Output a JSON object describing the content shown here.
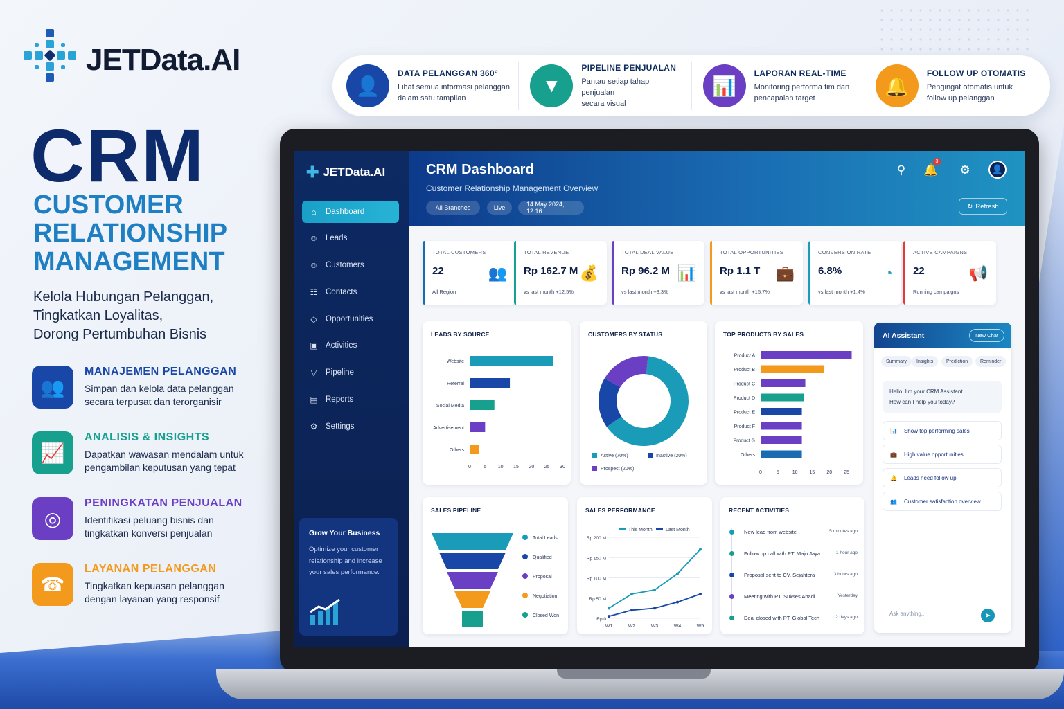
{
  "brand": {
    "name": "JETData.AI"
  },
  "hero": {
    "title": "CRM",
    "subtitle_lines": [
      "CUSTOMER",
      "RELATIONSHIP",
      "MANAGEMENT"
    ],
    "desc_lines": [
      "Kelola Hubungan Pelanggan,",
      "Tingkatkan Loyalitas,",
      "Dorong Pertumbuhan Bisnis"
    ]
  },
  "features": [
    {
      "title": "MANAJEMEN PELANGGAN",
      "desc1": "Simpan dan kelola data pelanggan",
      "desc2": "secara terpusat dan terorganisir",
      "icon": "users-icon",
      "color": "#1847a8"
    },
    {
      "title": "ANALISIS & INSIGHTS",
      "desc1": "Dapatkan wawasan mendalam untuk",
      "desc2": "pengambilan keputusan yang tepat",
      "icon": "chart-up-icon",
      "color": "#17a08d"
    },
    {
      "title": "PENINGKATAN PENJUALAN",
      "desc1": "Identifikasi peluang bisnis dan",
      "desc2": "tingkatkan konversi penjualan",
      "icon": "target-icon",
      "color": "#6a3fc4"
    },
    {
      "title": "LAYANAN PELANGGAN",
      "desc1": "Tingkatkan kepuasan pelanggan",
      "desc2": "dengan layanan yang responsif",
      "icon": "headset-icon",
      "color": "#f39a1c"
    }
  ],
  "top_features": [
    {
      "title": "DATA PELANGGAN 360°",
      "desc1": "Lihat semua informasi pelanggan",
      "desc2": "dalam satu tampilan",
      "icon": "user-icon",
      "color": "#1847a8"
    },
    {
      "title": "PIPELINE PENJUALAN",
      "desc1": "Pantau setiap tahap penjualan",
      "desc2": "secara visual",
      "icon": "funnel-icon",
      "color": "#17a08d"
    },
    {
      "title": "LAPORAN REAL-TIME",
      "desc1": "Monitoring performa tim dan",
      "desc2": "pencapaian target",
      "icon": "bar-chart-icon",
      "color": "#6a3fc4"
    },
    {
      "title": "FOLLOW UP OTOMATIS",
      "desc1": "Pengingat otomatis untuk",
      "desc2": "follow up pelanggan",
      "icon": "bell-icon",
      "color": "#f39a1c"
    }
  ],
  "sidebar": {
    "logo": "JETData.AI",
    "items": [
      {
        "label": "Dashboard",
        "icon": "home-icon"
      },
      {
        "label": "Leads",
        "icon": "users-icon"
      },
      {
        "label": "Customers",
        "icon": "users-icon"
      },
      {
        "label": "Contacts",
        "icon": "contacts-icon"
      },
      {
        "label": "Opportunities",
        "icon": "diamond-icon"
      },
      {
        "label": "Activities",
        "icon": "calendar-icon"
      },
      {
        "label": "Pipeline",
        "icon": "funnel-icon"
      },
      {
        "label": "Reports",
        "icon": "bar-chart-icon"
      },
      {
        "label": "Settings",
        "icon": "gear-icon"
      }
    ],
    "promo": {
      "title": "Grow Your Business",
      "text": "Optimize your customer relationship and increase your sales performance."
    }
  },
  "header": {
    "title": "CRM Dashboard",
    "subtitle": "Customer Relationship Management Overview",
    "chips": [
      "All Branches",
      "Live",
      "14 May 2024, 12:16"
    ],
    "refresh": "Refresh",
    "notifications": "3"
  },
  "kpis": [
    {
      "label": "TOTAL CUSTOMERS",
      "value": "22",
      "foot": "All Region",
      "color": "#1a6cb2",
      "icon": "users-icon"
    },
    {
      "label": "TOTAL REVENUE",
      "value": "Rp 162.7 M",
      "foot": "vs last month +12.5%",
      "color": "#17a08d",
      "icon": "money-bag-icon"
    },
    {
      "label": "TOTAL DEAL VALUE",
      "value": "Rp 96.2 M",
      "foot": "vs last month +8.3%",
      "color": "#6a3fc4",
      "icon": "bar-chart-icon"
    },
    {
      "label": "TOTAL OPPORTUNITIES",
      "value": "Rp 1.1 T",
      "foot": "vs last month +15.7%",
      "color": "#f39a1c",
      "icon": "briefcase-icon"
    },
    {
      "label": "CONVERSION RATE",
      "value": "6.8%",
      "foot": "vs last month +1.4%",
      "color": "#1a9bb8",
      "icon": "pie-icon"
    },
    {
      "label": "ACTIVE CAMPAIGNS",
      "value": "22",
      "foot": "Running campaigns",
      "color": "#e53935",
      "icon": "megaphone-icon"
    }
  ],
  "cards": {
    "leads_by_source": "LEADS BY SOURCE",
    "customers_by_status": "CUSTOMERS BY STATUS",
    "top_products": "TOP PRODUCTS BY SALES",
    "sales_pipeline": "SALES PIPELINE",
    "sales_performance": "SALES PERFORMANCE",
    "recent_activities": "RECENT ACTIVITIES"
  },
  "chart_data": [
    {
      "type": "bar",
      "title": "LEADS BY SOURCE",
      "orientation": "horizontal",
      "categories": [
        "Website",
        "Referral",
        "Social Media",
        "Advertisement",
        "Others"
      ],
      "values": [
        27,
        13,
        8,
        5,
        3
      ],
      "colors": [
        "#1a9bb8",
        "#1847a8",
        "#17a08d",
        "#6a3fc4",
        "#f39a1c"
      ],
      "xticks": [
        "0",
        "5",
        "10",
        "15",
        "20",
        "25",
        "30"
      ],
      "xlim": [
        0,
        30
      ]
    },
    {
      "type": "pie",
      "title": "CUSTOMERS BY STATUS",
      "donut": true,
      "labels": [
        "Active (70%)",
        "Inactive (20%)",
        "Prospect (20%)"
      ],
      "values": [
        70,
        20,
        20
      ],
      "colors": [
        "#1a9bb8",
        "#1847a8",
        "#6a3fc4"
      ]
    },
    {
      "type": "bar",
      "title": "TOP PRODUCTS BY SALES",
      "orientation": "horizontal",
      "categories": [
        "Product A",
        "Product B",
        "Product C",
        "Product D",
        "Product E",
        "Product F",
        "Product G",
        "Others"
      ],
      "values": [
        26.5,
        18.5,
        13,
        12.5,
        12,
        12,
        12,
        12
      ],
      "colors": [
        "#6a3fc4",
        "#f39a1c",
        "#6a3fc4",
        "#17a08d",
        "#1847a8",
        "#6a3fc4",
        "#6a3fc4",
        "#1a6cb2"
      ],
      "xticks": [
        "0",
        "5",
        "10",
        "15",
        "20",
        "25"
      ],
      "xlim": [
        0,
        27
      ]
    },
    {
      "type": "bar",
      "title": "SALES PIPELINE",
      "funnel": true,
      "categories": [
        "Total Leads",
        "Qualified",
        "Proposal",
        "Negotiation",
        "Closed Won"
      ],
      "colors": [
        "#1a9bb8",
        "#1847a8",
        "#6a3fc4",
        "#f39a1c",
        "#17a08d"
      ]
    },
    {
      "type": "line",
      "title": "SALES PERFORMANCE",
      "x": [
        "W1",
        "W2",
        "W3",
        "W4",
        "W5"
      ],
      "yticks": [
        "Rp 200 M",
        "Rp 150 M",
        "Rp 100 M",
        "Rp 50 M",
        "Rp 0"
      ],
      "ylim": [
        0,
        200
      ],
      "series": [
        {
          "name": "This Month",
          "values": [
            25,
            60,
            70,
            110,
            170
          ],
          "color": "#1a9bb8"
        },
        {
          "name": "Last Month",
          "values": [
            5,
            20,
            25,
            40,
            60
          ],
          "color": "#1847a8"
        }
      ]
    }
  ],
  "activities": [
    {
      "text": "New lead from website",
      "time": "5 minutes ago",
      "color": "#1a9bb8"
    },
    {
      "text": "Follow up call with PT. Maju Jaya",
      "time": "1 hour ago",
      "color": "#17a08d"
    },
    {
      "text": "Proposal sent to CV. Sejahtera",
      "time": "3 hours ago",
      "color": "#1847a8"
    },
    {
      "text": "Meeting with PT. Sukses Abadi",
      "time": "Yesterday",
      "color": "#6a3fc4"
    },
    {
      "text": "Deal closed with PT. Global Tech",
      "time": "2 days ago",
      "color": "#17a08d"
    }
  ],
  "ai": {
    "title": "AI Assistant",
    "new_chat": "New Chat",
    "tabs": [
      "Summary",
      "Insights",
      "Prediction",
      "Reminder"
    ],
    "greeting1": "Hello! I'm your CRM Assistant.",
    "greeting2": "How can I help you today?",
    "suggestions": [
      {
        "text": "Show top performing sales",
        "icon": "bar-chart-icon"
      },
      {
        "text": "High value opportunities",
        "icon": "briefcase-icon"
      },
      {
        "text": "Leads need follow up",
        "icon": "bell-icon"
      },
      {
        "text": "Customer satisfaction overview",
        "icon": "users-icon"
      }
    ],
    "placeholder": "Ask anything..."
  }
}
